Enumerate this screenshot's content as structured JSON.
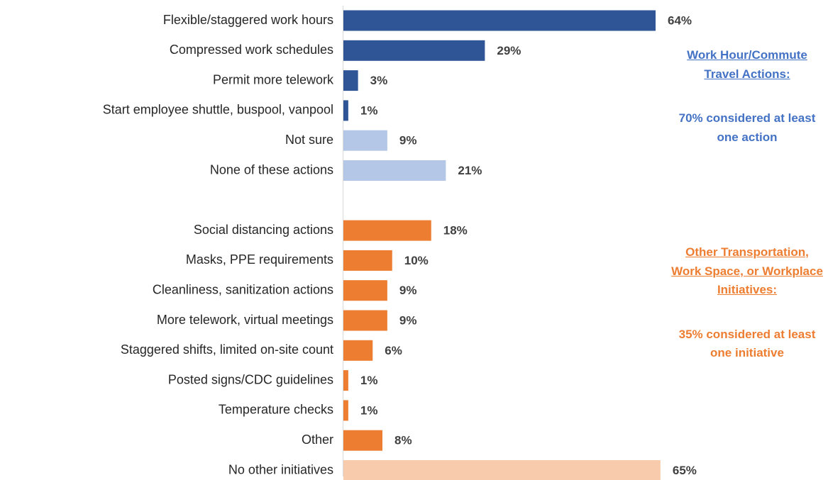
{
  "chart_data": {
    "type": "barh",
    "categories": [
      "Flexible/staggered work hours",
      "Compressed work schedules",
      "Permit more telework",
      "Start employee shuttle, buspool, vanpool",
      "Not sure",
      "None of these actions",
      null,
      "Social distancing actions",
      "Masks, PPE requirements",
      "Cleanliness, sanitization actions",
      "More telework, virtual meetings",
      "Staggered shifts, limited on-site count",
      "Posted signs/CDC guidelines",
      "Temperature checks",
      "Other",
      "No other initiatives"
    ],
    "values": [
      64,
      29,
      3,
      1,
      9,
      21,
      null,
      18,
      10,
      9,
      9,
      6,
      1,
      1,
      8,
      65
    ],
    "value_labels": [
      "64%",
      "29%",
      "3%",
      "1%",
      "9%",
      "21%",
      null,
      "18%",
      "10%",
      "9%",
      "9%",
      "6%",
      "1%",
      "1%",
      "8%",
      "65%"
    ],
    "colors": [
      "#2f5597",
      "#2f5597",
      "#2f5597",
      "#2f5597",
      "#b4c7e7",
      "#b4c7e7",
      null,
      "#ed7d31",
      "#ed7d31",
      "#ed7d31",
      "#ed7d31",
      "#ed7d31",
      "#ed7d31",
      "#ed7d31",
      "#ed7d31",
      "#f8cbad"
    ],
    "xlim": [
      0,
      80
    ],
    "annotations": [
      {
        "title": "Work Hour/Commute Travel Actions:",
        "text": "70% considered at least one action",
        "color": "#4472c4"
      },
      {
        "title": "Other Transportation, Work Space, or Workplace Initiatives:",
        "text": "35% considered at least one initiative",
        "color": "#ed7d31"
      }
    ]
  }
}
